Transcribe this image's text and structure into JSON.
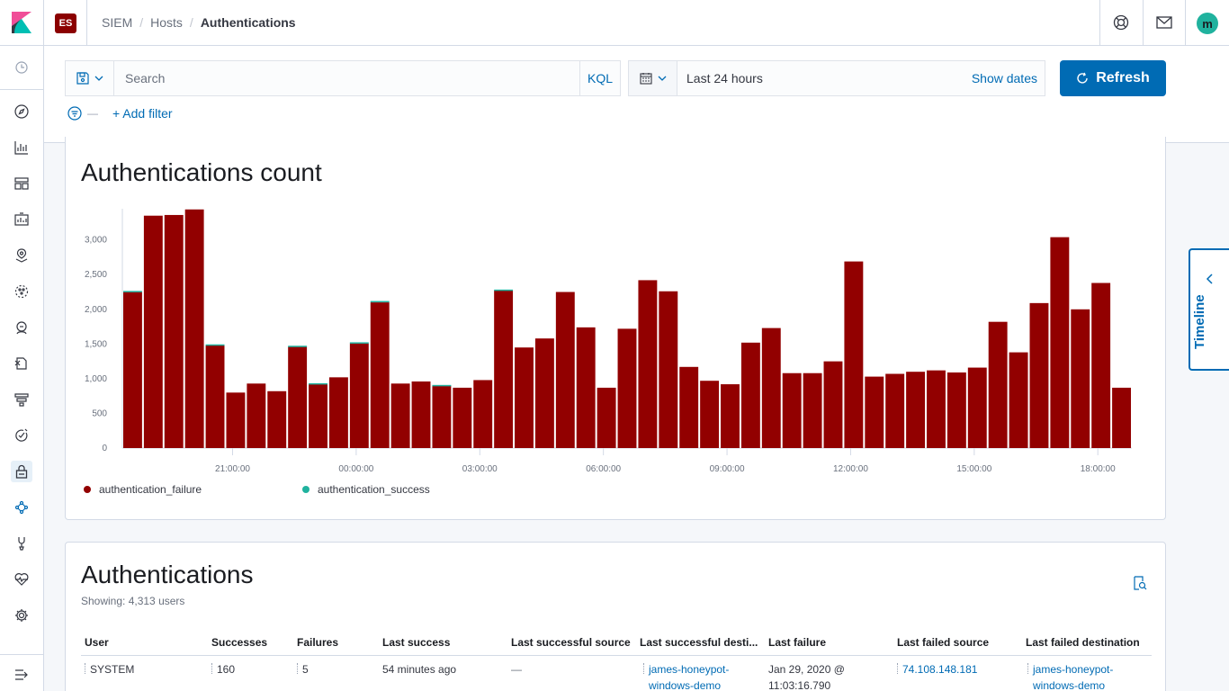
{
  "header": {
    "breadcrumbs": [
      "SIEM",
      "Hosts",
      "Authentications"
    ],
    "es_badge": "ES",
    "avatar_initial": "m"
  },
  "query": {
    "search_placeholder": "Search",
    "kql_label": "KQL",
    "date_range": "Last 24 hours",
    "show_dates_label": "Show dates",
    "refresh_label": "Refresh",
    "add_filter_label": "+ Add filter"
  },
  "sidenav": {
    "items": [
      "clock-icon",
      "compass-icon",
      "visualize-icon",
      "dashboard-icon",
      "canvas-icon",
      "maps-icon",
      "ml-icon",
      "metrics-icon",
      "logs-icon",
      "apm-icon",
      "uptime-icon",
      "siem-icon",
      "graph-icon",
      "devtools-icon",
      "monitoring-icon",
      "management-icon",
      "collapse-icon"
    ]
  },
  "chart_panel": {
    "title": "Authentications count"
  },
  "chart_data": {
    "type": "bar",
    "stacked": true,
    "x_tick_labels": [
      "21:00:00",
      "00:00:00",
      "03:00:00",
      "06:00:00",
      "09:00:00",
      "12:00:00",
      "15:00:00",
      "18:00:00"
    ],
    "y_tick_labels": [
      "0",
      "500",
      "1,000",
      "1,500",
      "2,000",
      "2,500",
      "3,000"
    ],
    "ylim": [
      0,
      3450
    ],
    "series": [
      {
        "name": "authentication_failure",
        "color": "#920000",
        "values": [
          2250,
          3350,
          3360,
          3440,
          1480,
          800,
          930,
          820,
          1460,
          920,
          1020,
          1510,
          2100,
          930,
          960,
          900,
          870,
          980,
          2270,
          1450,
          1580,
          2250,
          1740,
          870,
          1720,
          2420,
          2260,
          1170,
          970,
          920,
          1520,
          1730,
          1080,
          1080,
          1250,
          2690,
          1030,
          1070,
          1100,
          1120,
          1090,
          1160,
          1820,
          1380,
          2090,
          3040,
          2000,
          2380,
          870
        ]
      },
      {
        "name": "authentication_success",
        "color": "#20b29e",
        "values": [
          15,
          0,
          0,
          0,
          15,
          0,
          0,
          0,
          15,
          15,
          0,
          15,
          20,
          0,
          0,
          10,
          0,
          0,
          15,
          0,
          0,
          0,
          0,
          0,
          0,
          0,
          0,
          0,
          0,
          0,
          0,
          0,
          0,
          0,
          0,
          0,
          0,
          0,
          0,
          0,
          0,
          0,
          0,
          0,
          0,
          0,
          0,
          0,
          0
        ]
      }
    ]
  },
  "table_panel": {
    "title": "Authentications",
    "showing": "Showing: 4,313 users",
    "columns": [
      "User",
      "Successes",
      "Failures",
      "Last success",
      "Last successful source",
      "Last successful desti...",
      "Last failure",
      "Last failed source",
      "Last failed destination"
    ],
    "rows": [
      {
        "user": "SYSTEM",
        "successes": "160",
        "failures": "5",
        "last_success": "54 minutes ago",
        "last_successful_source": "—",
        "last_successful_destination_1": "james-honeypot-",
        "last_successful_destination_2": "windows-demo",
        "last_failure_1": "Jan 29, 2020 @",
        "last_failure_2": "11:03:16.790",
        "last_failed_source": "74.108.148.181",
        "last_failed_destination_1": "james-honeypot-",
        "last_failed_destination_2": "windows-demo"
      }
    ]
  },
  "timeline_tab": {
    "label": "Timeline"
  }
}
